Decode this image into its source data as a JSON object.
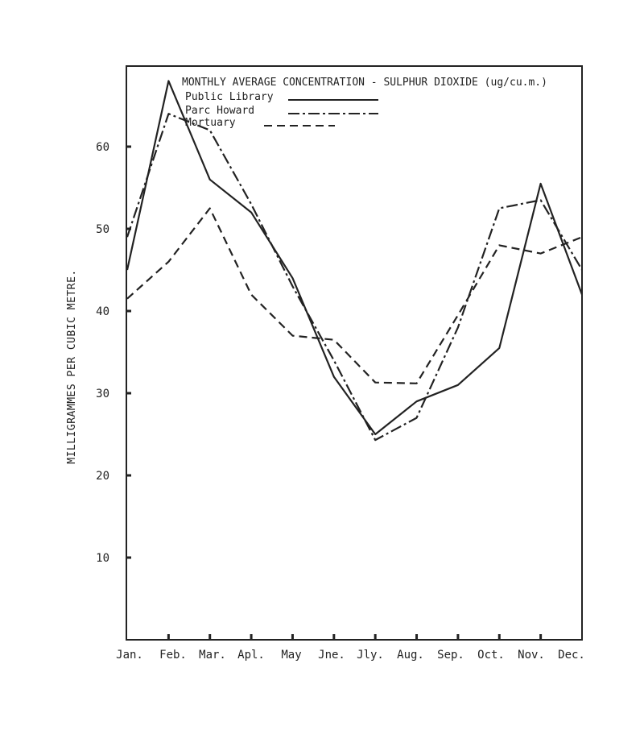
{
  "chart_data": {
    "type": "line",
    "title": "MONTHLY AVERAGE CONCENTRATION - SULPHUR DIOXIDE (ug/cu.m.)",
    "ylabel": "MILLIGRAMMES PER CUBIC METRE.",
    "xlabel": "",
    "categories": [
      "Jan.",
      "Feb.",
      "Mar.",
      "Apl.",
      "May",
      "Jne.",
      "Jly.",
      "Aug.",
      "Sep.",
      "Oct.",
      "Nov.",
      "Dec."
    ],
    "yticks": [
      10,
      20,
      30,
      40,
      50,
      60
    ],
    "ylim": [
      0,
      70
    ],
    "grid": false,
    "legend_position": "top-left",
    "series": [
      {
        "name": "Public Library",
        "style": "solid",
        "values": [
          45,
          68,
          56,
          52,
          44,
          32,
          25,
          29,
          31,
          35.5,
          55.5,
          42
        ]
      },
      {
        "name": "Parc Howard",
        "style": "dash-dot",
        "values": [
          49,
          64,
          62,
          53,
          43,
          34,
          24.3,
          27,
          38,
          52.5,
          53.5,
          45
        ]
      },
      {
        "name": "Mortuary",
        "style": "dashed",
        "values": [
          41.5,
          46,
          52.5,
          42,
          37,
          36.5,
          31.3,
          31.2,
          39.5,
          48,
          47,
          49
        ]
      }
    ]
  }
}
